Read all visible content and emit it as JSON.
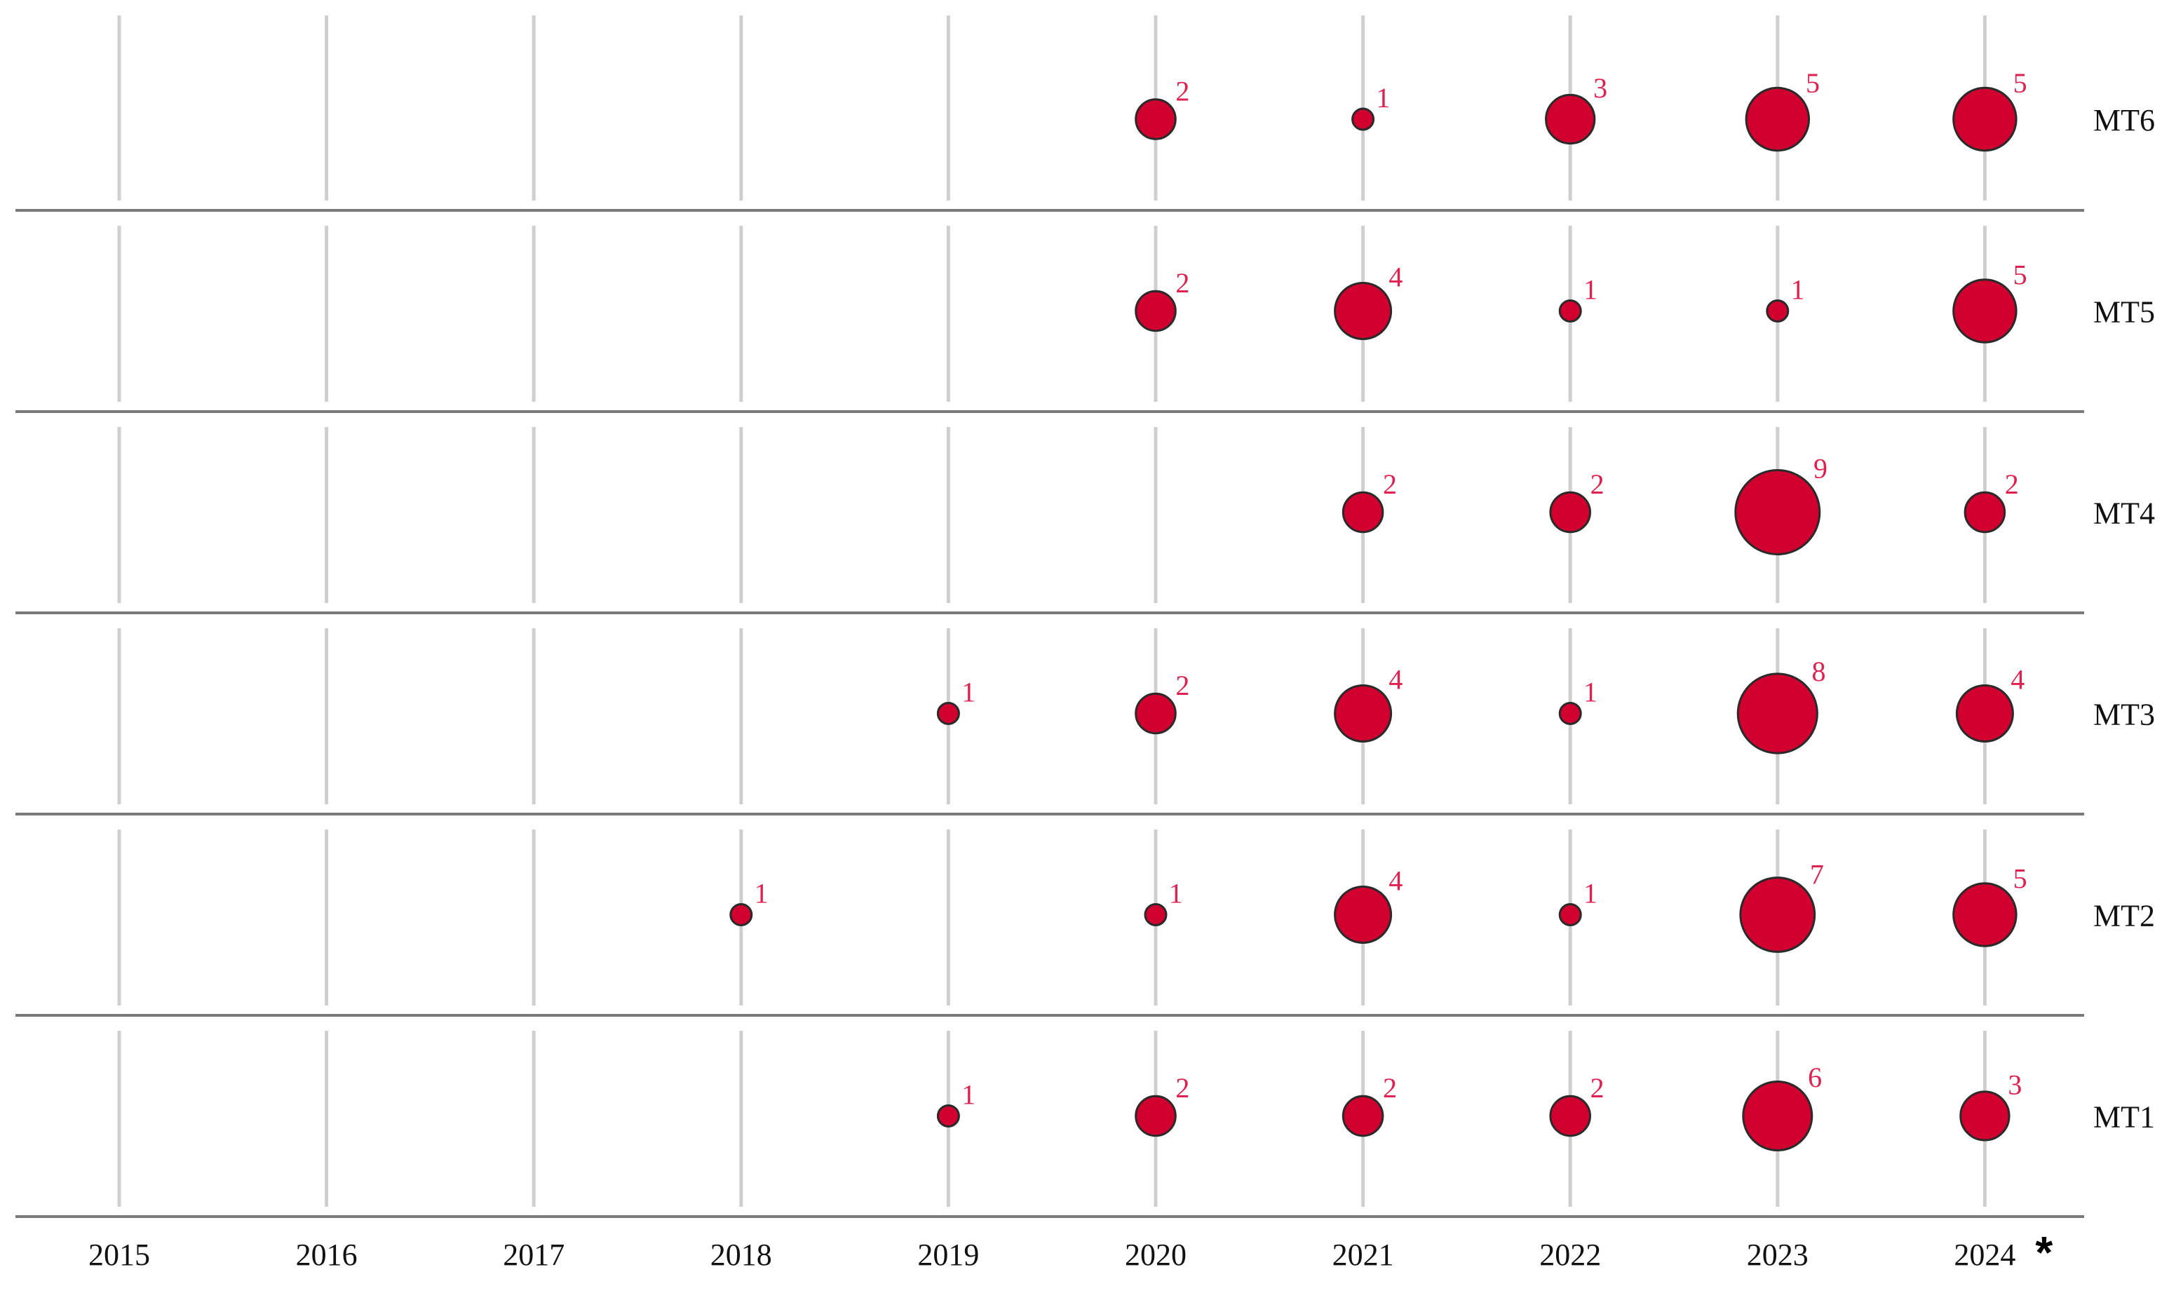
{
  "colors": {
    "bubble": "#d1002f",
    "label": "#e0214f",
    "grid": "#cfcfcf",
    "separator": "#7a7a7a"
  },
  "chart_data": {
    "type": "scatter",
    "encoding": "bubble size = count",
    "title": "",
    "xlabel": "",
    "ylabel": "",
    "grid": true,
    "legend": "none",
    "x": [
      "2015",
      "2016",
      "2017",
      "2018",
      "2019",
      "2020",
      "2021",
      "2022",
      "2023",
      "2024"
    ],
    "x_note_mark": "*",
    "x_note_year": "2024",
    "rows": [
      {
        "name": "MT6",
        "values": [
          null,
          null,
          null,
          null,
          null,
          2,
          1,
          3,
          5,
          5
        ]
      },
      {
        "name": "MT5",
        "values": [
          null,
          null,
          null,
          null,
          null,
          2,
          4,
          1,
          1,
          5
        ]
      },
      {
        "name": "MT4",
        "values": [
          null,
          null,
          null,
          null,
          null,
          null,
          2,
          2,
          9,
          2
        ]
      },
      {
        "name": "MT3",
        "values": [
          null,
          null,
          null,
          null,
          1,
          2,
          4,
          1,
          8,
          4
        ]
      },
      {
        "name": "MT2",
        "values": [
          null,
          null,
          null,
          1,
          null,
          1,
          4,
          1,
          7,
          5
        ]
      },
      {
        "name": "MT1",
        "values": [
          null,
          null,
          null,
          null,
          1,
          2,
          2,
          2,
          6,
          3
        ]
      }
    ]
  }
}
